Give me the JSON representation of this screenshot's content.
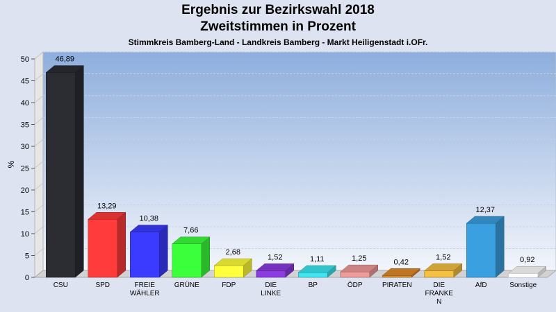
{
  "chart_data": {
    "type": "bar",
    "title": "Ergebnis zur Bezirkswahl 2018",
    "subtitle": "Zweitstimmen in Prozent",
    "subtitle2": "Stimmkreis Bamberg-Land - Landkreis Bamberg - Markt Heiligenstadt i.OFr.",
    "ylabel": "%",
    "xlabel": "",
    "ylim": [
      0,
      50
    ],
    "yticks": [
      "0",
      "5",
      "10",
      "15",
      "20",
      "25",
      "30",
      "35",
      "40",
      "45",
      "50"
    ],
    "grid": true,
    "categories": [
      [
        "CSU"
      ],
      [
        "SPD"
      ],
      [
        "FREIE",
        "WÄHLER"
      ],
      [
        "GRÜNE"
      ],
      [
        "FDP"
      ],
      [
        "DIE",
        "LINKE"
      ],
      [
        "BP"
      ],
      [
        "ÖDP"
      ],
      [
        "PIRATEN"
      ],
      [
        "DIE",
        "FRANKE",
        "N"
      ],
      [
        "AfD"
      ],
      [
        "Sonstige"
      ]
    ],
    "values": [
      46.89,
      13.29,
      10.38,
      7.66,
      2.68,
      1.52,
      1.11,
      1.25,
      0.42,
      1.52,
      12.37,
      0.92
    ],
    "value_labels": [
      "46,89",
      "13,29",
      "10,38",
      "7,66",
      "2,68",
      "1,52",
      "1,11",
      "1,25",
      "0,42",
      "1,52",
      "12,37",
      "0,92"
    ],
    "colors": [
      "#2b2d33",
      "#ff3b3b",
      "#3b3bff",
      "#3bff3b",
      "#ffff3b",
      "#8b3be0",
      "#3be6f0",
      "#f09a9a",
      "#e08a2a",
      "#f5c040",
      "#3ba0e0",
      "#ffffff"
    ]
  }
}
